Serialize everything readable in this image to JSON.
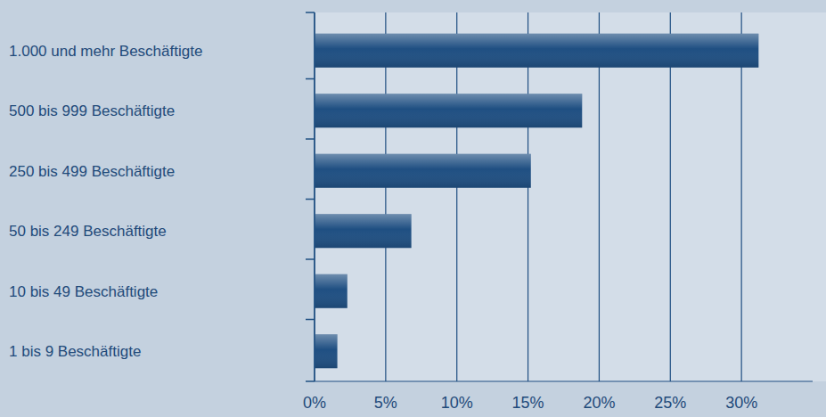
{
  "chart_data": {
    "type": "bar",
    "orientation": "horizontal",
    "categories": [
      "1.000 und mehr Beschäftigte",
      "500 bis 999 Beschäftigte",
      "250 bis 499 Beschäftigte",
      "50 bis 249 Beschäftigte",
      "10 bis 49 Beschäftigte",
      "1 bis 9 Beschäftigte"
    ],
    "values": [
      31.2,
      18.8,
      15.2,
      6.8,
      2.3,
      1.6
    ],
    "color": "#1f4f82",
    "xlim": [
      0,
      35
    ],
    "xticks": [
      {
        "value": 0,
        "label": "0%"
      },
      {
        "value": 5,
        "label": "5%"
      },
      {
        "value": 10,
        "label": "10%"
      },
      {
        "value": 15,
        "label": "15%"
      },
      {
        "value": 20,
        "label": "20%"
      },
      {
        "value": 25,
        "label": "25%"
      },
      {
        "value": 30,
        "label": "30%"
      }
    ],
    "grid": true
  }
}
